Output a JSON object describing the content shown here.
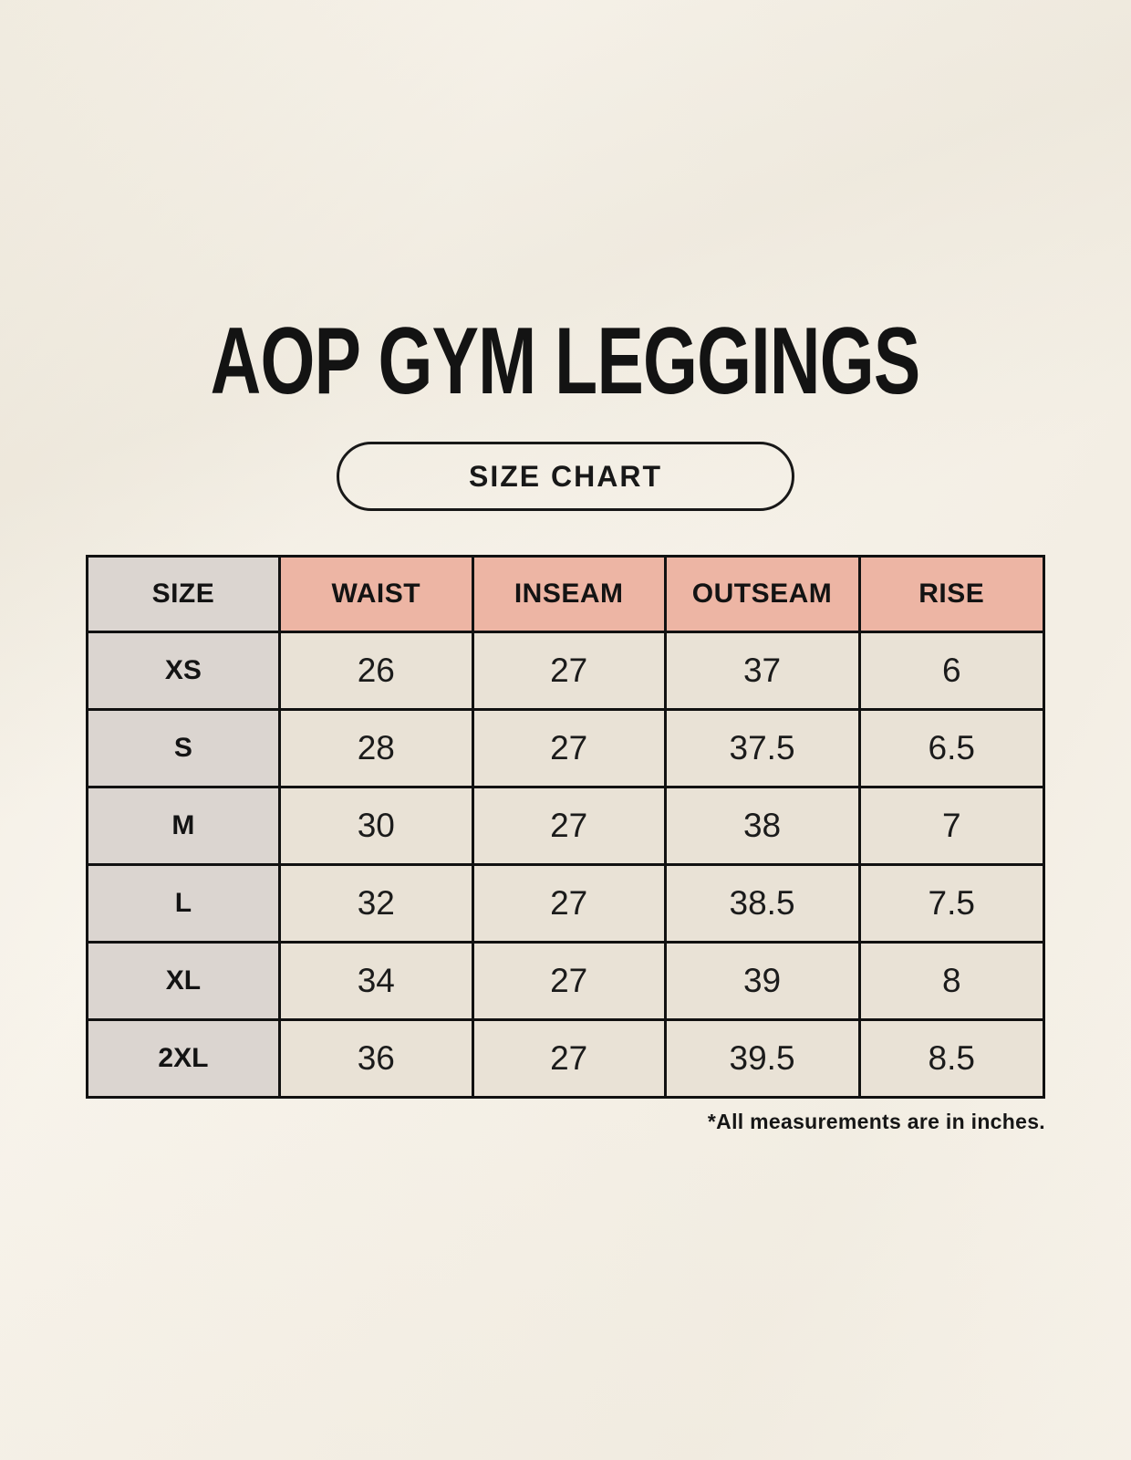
{
  "page": {
    "title": "AOP GYM LEGGINGS",
    "badge_label": "SIZE CHART",
    "footnote": "*All measurements are in inches."
  },
  "colors": {
    "background": "#f8f4ec",
    "header_accent_salmon": "#edb5a4",
    "size_column_gray": "#dbd5d0",
    "cell_beige": "#e9e2d6",
    "table_border": "#111111",
    "text": "#141414"
  },
  "chart_data": {
    "type": "table",
    "title": "AOP GYM LEGGINGS",
    "subtitle": "SIZE CHART",
    "columns": [
      "SIZE",
      "WAIST",
      "INSEAM",
      "OUTSEAM",
      "RISE"
    ],
    "rows": [
      [
        "XS",
        "26",
        "27",
        "37",
        "6"
      ],
      [
        "S",
        "28",
        "27",
        "37.5",
        "6.5"
      ],
      [
        "M",
        "30",
        "27",
        "38",
        "7"
      ],
      [
        "L",
        "32",
        "27",
        "38.5",
        "7.5"
      ],
      [
        "XL",
        "34",
        "27",
        "39",
        "8"
      ],
      [
        "2XL",
        "36",
        "27",
        "39.5",
        "8.5"
      ]
    ],
    "note": "*All measurements are in inches.",
    "units": "inches"
  }
}
